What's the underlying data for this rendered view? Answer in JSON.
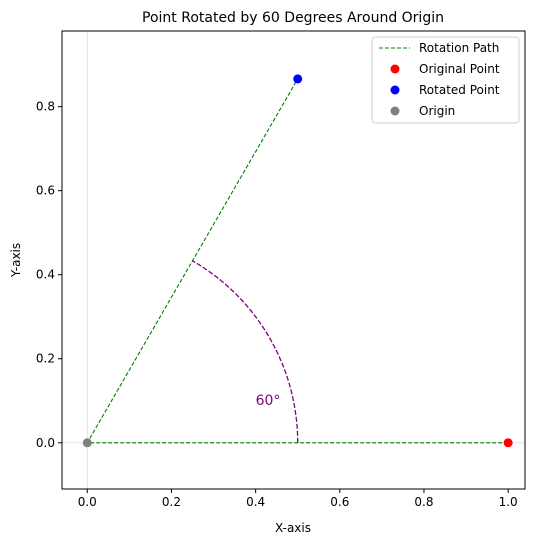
{
  "chart_data": {
    "type": "scatter",
    "title": "Point Rotated by 60 Degrees Around Origin",
    "xlabel": "X-axis",
    "ylabel": "Y-axis",
    "xlim": [
      -0.06,
      1.04
    ],
    "ylim": [
      -0.11,
      0.98
    ],
    "xticks": [
      0.0,
      0.2,
      0.4,
      0.6,
      0.8,
      1.0
    ],
    "xtick_labels": [
      "0.0",
      "0.2",
      "0.4",
      "0.6",
      "0.8",
      "1.0"
    ],
    "yticks": [
      0.0,
      0.2,
      0.4,
      0.6,
      0.8
    ],
    "ytick_labels": [
      "0.0",
      "0.2",
      "0.4",
      "0.6",
      "0.8"
    ],
    "reference_lines": {
      "x": 0,
      "y": 0,
      "color": "#bbbbbb"
    },
    "rotation_path": {
      "name": "Rotation Path",
      "color": "#008000",
      "style": "dashed",
      "points": [
        [
          1.0,
          0.0
        ],
        [
          0.0,
          0.0
        ],
        [
          0.5,
          0.866
        ]
      ]
    },
    "angle_arc": {
      "radius": 0.5,
      "start_deg": 0,
      "end_deg": 60,
      "color": "#800080",
      "label": "60°",
      "label_position": [
        0.4,
        0.1
      ]
    },
    "points": [
      {
        "name": "Original Point",
        "x": 1.0,
        "y": 0.0,
        "color": "#ff0000"
      },
      {
        "name": "Rotated Point",
        "x": 0.5,
        "y": 0.866,
        "color": "#0000ff"
      },
      {
        "name": "Origin",
        "x": 0.0,
        "y": 0.0,
        "color": "#808080"
      }
    ],
    "legend": {
      "position": "top-right",
      "entries": [
        {
          "label": "Rotation Path",
          "kind": "line",
          "color": "#008000"
        },
        {
          "label": "Original Point",
          "kind": "marker",
          "color": "#ff0000"
        },
        {
          "label": "Rotated Point",
          "kind": "marker",
          "color": "#0000ff"
        },
        {
          "label": "Origin",
          "kind": "marker",
          "color": "#808080"
        }
      ]
    }
  }
}
